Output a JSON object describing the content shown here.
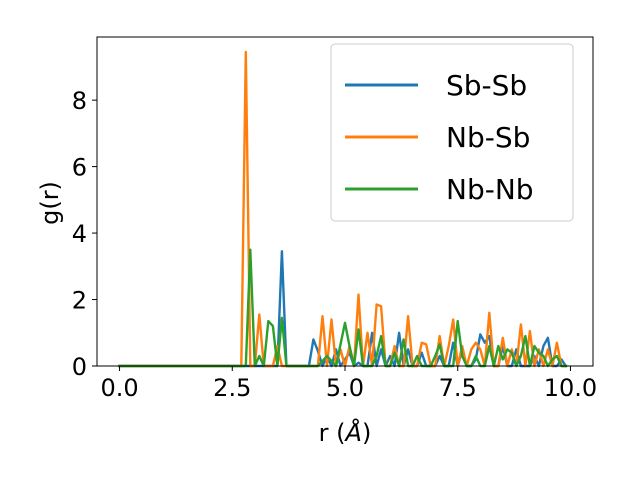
{
  "chart_data": {
    "type": "line",
    "xlabel": "r (Å)",
    "xlabel_parts": {
      "prefix": "r (",
      "unit": "Å",
      "suffix": ")"
    },
    "ylabel": "g(r)",
    "xlim": [
      -0.5,
      10.5
    ],
    "ylim": [
      0,
      9.9
    ],
    "xticks": [
      0.0,
      2.5,
      5.0,
      7.5,
      10.0
    ],
    "xtick_labels": [
      "0.0",
      "2.5",
      "5.0",
      "7.5",
      "10.0"
    ],
    "yticks": [
      0,
      2,
      4,
      6,
      8
    ],
    "ytick_labels": [
      "0",
      "2",
      "4",
      "6",
      "8"
    ],
    "grid": false,
    "legend_position": "upper right",
    "series": [
      {
        "name": "Sb-Sb",
        "color": "#1f77b4",
        "x": [
          0.0,
          0.5,
          1.0,
          1.5,
          2.0,
          2.5,
          2.8,
          3.0,
          3.3,
          3.5,
          3.6,
          3.7,
          3.8,
          4.0,
          4.2,
          4.3,
          4.4,
          4.5,
          4.6,
          4.7,
          4.8,
          4.9,
          5.0,
          5.1,
          5.2,
          5.3,
          5.4,
          5.5,
          5.6,
          5.7,
          5.8,
          5.9,
          6.0,
          6.1,
          6.2,
          6.3,
          6.4,
          6.5,
          6.6,
          6.7,
          6.8,
          6.9,
          7.0,
          7.1,
          7.2,
          7.3,
          7.4,
          7.5,
          7.6,
          7.7,
          7.8,
          7.9,
          8.0,
          8.1,
          8.2,
          8.3,
          8.4,
          8.5,
          8.6,
          8.7,
          8.8,
          8.9,
          9.0,
          9.1,
          9.2,
          9.3,
          9.4,
          9.5,
          9.6,
          9.7,
          9.8,
          9.9
        ],
        "y": [
          0.0,
          0.0,
          0.0,
          0.0,
          0.0,
          0.0,
          0.0,
          0.0,
          0.0,
          0.0,
          3.45,
          0.0,
          0.0,
          0.0,
          0.0,
          0.8,
          0.45,
          0.0,
          0.3,
          0.0,
          0.5,
          0.0,
          0.2,
          0.4,
          0.0,
          0.1,
          0.0,
          0.0,
          1.0,
          0.0,
          0.5,
          0.0,
          0.3,
          0.0,
          1.0,
          0.0,
          0.5,
          0.0,
          0.0,
          0.4,
          0.0,
          0.0,
          0.0,
          0.3,
          0.0,
          0.0,
          0.7,
          0.0,
          0.5,
          0.0,
          0.0,
          0.2,
          0.95,
          0.7,
          0.9,
          0.0,
          0.0,
          0.6,
          0.0,
          0.0,
          0.5,
          0.0,
          0.0,
          0.0,
          0.3,
          0.0,
          0.6,
          0.85,
          0.0,
          0.0,
          0.2,
          0.0
        ]
      },
      {
        "name": "Nb-Sb",
        "color": "#ff7f0e",
        "x": [
          0.0,
          0.5,
          1.0,
          1.5,
          2.0,
          2.5,
          2.7,
          2.8,
          2.9,
          3.0,
          3.1,
          3.2,
          3.3,
          3.4,
          3.5,
          3.6,
          3.8,
          4.0,
          4.2,
          4.4,
          4.5,
          4.6,
          4.7,
          4.8,
          4.9,
          5.0,
          5.1,
          5.2,
          5.3,
          5.4,
          5.5,
          5.6,
          5.7,
          5.8,
          5.9,
          6.0,
          6.1,
          6.2,
          6.3,
          6.4,
          6.5,
          6.6,
          6.7,
          6.8,
          6.9,
          7.0,
          7.1,
          7.2,
          7.3,
          7.4,
          7.5,
          7.6,
          7.7,
          7.8,
          7.9,
          8.0,
          8.1,
          8.2,
          8.3,
          8.4,
          8.5,
          8.6,
          8.7,
          8.8,
          8.9,
          9.0,
          9.1,
          9.2,
          9.3,
          9.4,
          9.5,
          9.6,
          9.7,
          9.8,
          9.9
        ],
        "y": [
          0.0,
          0.0,
          0.0,
          0.0,
          0.0,
          0.0,
          0.0,
          9.45,
          0.0,
          0.0,
          1.55,
          0.0,
          0.0,
          0.0,
          0.6,
          0.0,
          0.0,
          0.0,
          0.0,
          0.0,
          1.5,
          0.0,
          1.4,
          0.0,
          0.5,
          0.0,
          0.6,
          0.0,
          2.15,
          0.0,
          1.0,
          0.0,
          1.85,
          1.8,
          0.0,
          0.0,
          0.6,
          0.0,
          0.0,
          1.5,
          0.0,
          0.0,
          0.7,
          0.65,
          0.0,
          0.0,
          0.9,
          0.0,
          0.6,
          1.4,
          0.0,
          0.6,
          0.0,
          0.5,
          0.7,
          0.5,
          0.0,
          1.6,
          0.0,
          0.0,
          0.85,
          0.0,
          0.5,
          0.0,
          1.25,
          0.0,
          1.05,
          0.0,
          0.5,
          0.0,
          0.5,
          0.0,
          0.7,
          0.0,
          0.0
        ]
      },
      {
        "name": "Nb-Nb",
        "color": "#2ca02c",
        "x": [
          0.0,
          0.5,
          1.0,
          1.5,
          2.0,
          2.5,
          2.8,
          2.9,
          3.0,
          3.1,
          3.2,
          3.3,
          3.4,
          3.5,
          3.6,
          3.7,
          3.8,
          4.0,
          4.2,
          4.4,
          4.6,
          4.8,
          5.0,
          5.1,
          5.2,
          5.3,
          5.4,
          5.5,
          5.6,
          5.7,
          5.8,
          5.9,
          6.0,
          6.1,
          6.2,
          6.3,
          6.4,
          6.5,
          6.6,
          6.7,
          6.8,
          6.9,
          7.0,
          7.1,
          7.2,
          7.3,
          7.4,
          7.5,
          7.6,
          7.7,
          7.8,
          7.9,
          8.0,
          8.1,
          8.2,
          8.3,
          8.4,
          8.5,
          8.6,
          8.7,
          8.8,
          8.9,
          9.0,
          9.1,
          9.2,
          9.3,
          9.4,
          9.5,
          9.6,
          9.7,
          9.8,
          9.9
        ],
        "y": [
          0.0,
          0.0,
          0.0,
          0.0,
          0.0,
          0.0,
          0.0,
          3.5,
          0.0,
          0.3,
          0.0,
          1.35,
          1.2,
          0.0,
          1.45,
          0.0,
          0.0,
          0.0,
          0.0,
          0.0,
          0.3,
          0.0,
          1.3,
          0.6,
          0.0,
          1.1,
          0.0,
          0.0,
          0.0,
          0.3,
          0.9,
          0.0,
          0.0,
          0.4,
          0.0,
          0.8,
          0.0,
          0.0,
          0.3,
          0.0,
          0.0,
          0.0,
          0.3,
          0.65,
          0.0,
          0.0,
          0.0,
          1.35,
          0.3,
          0.0,
          0.0,
          0.3,
          0.0,
          0.0,
          0.6,
          0.0,
          0.6,
          0.2,
          0.5,
          0.4,
          0.0,
          0.3,
          0.9,
          0.0,
          0.6,
          0.4,
          0.3,
          0.0,
          0.2,
          0.3,
          0.0,
          0.0
        ]
      }
    ]
  }
}
